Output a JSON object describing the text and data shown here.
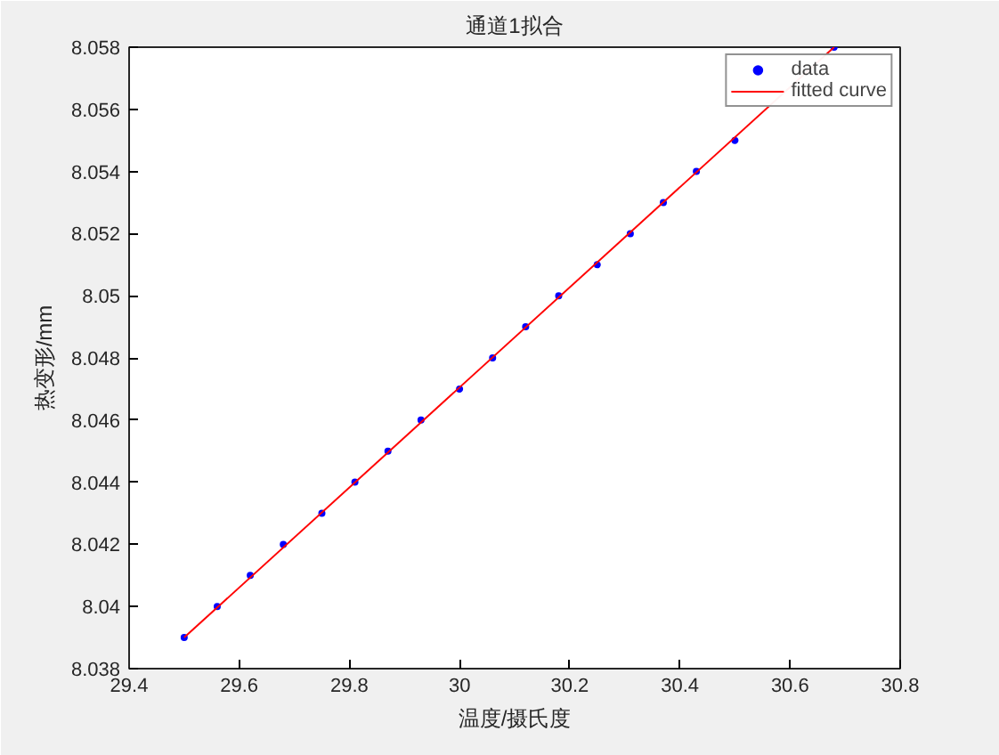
{
  "chart_data": {
    "type": "scatter",
    "title": "通道1拟合",
    "xlabel": "温度/摄氏度",
    "ylabel": "热变形/mm",
    "x": [
      29.5,
      29.56,
      29.62,
      29.68,
      29.75,
      29.81,
      29.87,
      29.93,
      30.0,
      30.06,
      30.12,
      30.18,
      30.25,
      30.31,
      30.37,
      30.43,
      30.5,
      30.56,
      30.62,
      30.68
    ],
    "series": [
      {
        "name": "data",
        "color": "#0000ff",
        "marker": "circle",
        "values": [
          8.039,
          8.04,
          8.041,
          8.042,
          8.043,
          8.044,
          8.045,
          8.046,
          8.047,
          8.048,
          8.049,
          8.05,
          8.051,
          8.052,
          8.053,
          8.054,
          8.055,
          null,
          null,
          8.058
        ]
      },
      {
        "name": "fitted curve",
        "type": "line",
        "color": "#ff0000",
        "line_style": "solid",
        "x": [
          29.5,
          30.68
        ],
        "values": [
          8.039,
          8.058
        ]
      }
    ],
    "xlim": [
      29.4,
      30.8
    ],
    "xticks": [
      29.4,
      29.6,
      29.8,
      {
        "value": 30,
        "label": "30"
      },
      30.2,
      30.4,
      30.6,
      30.8
    ],
    "ylim": [
      8.038,
      8.058
    ],
    "yticks": [
      8.038,
      {
        "value": 8.04,
        "label": "8.04"
      },
      8.042,
      8.044,
      8.046,
      8.048,
      {
        "value": 8.05,
        "label": "8.05"
      },
      8.052,
      8.054,
      8.056,
      8.058
    ],
    "grid": false,
    "legend": "top right"
  }
}
